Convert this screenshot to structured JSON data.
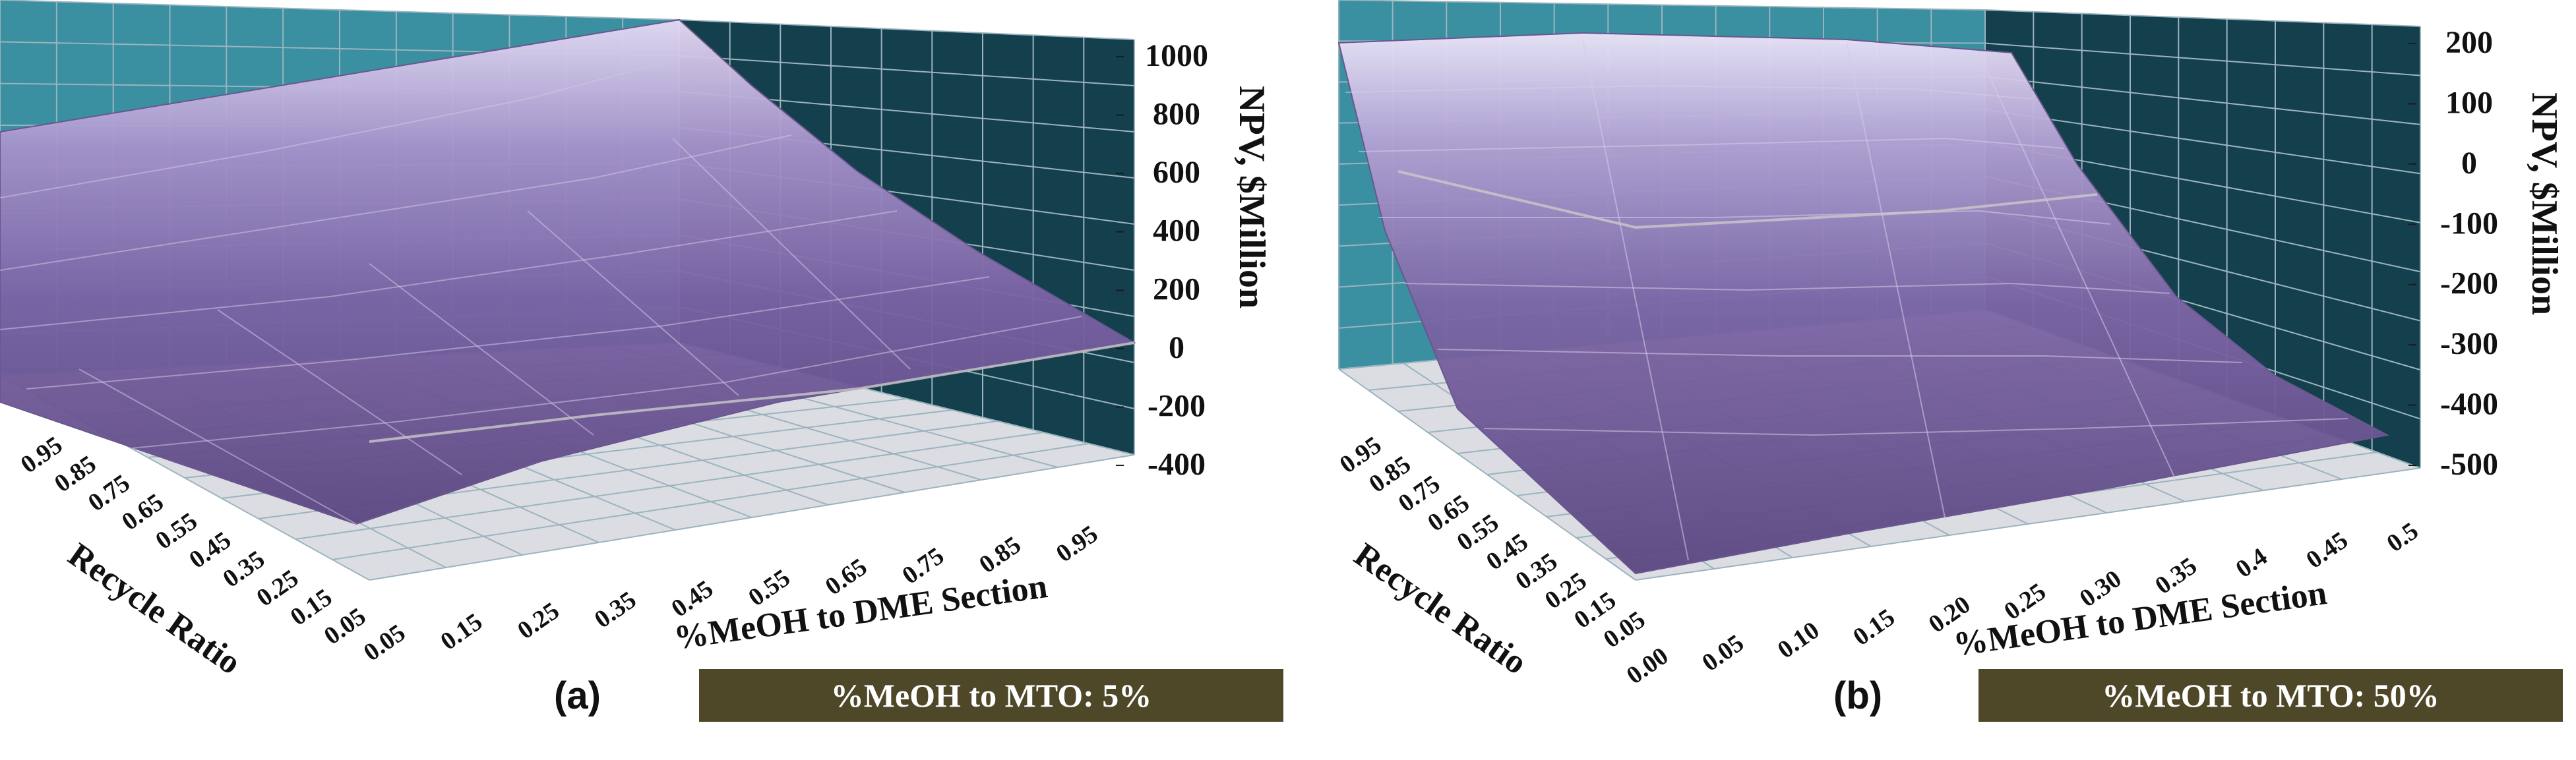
{
  "chart_data": [
    {
      "type": "surface",
      "panel_label": "(a)",
      "banner": "%MeOH to MTO: 5%",
      "xlabel": "%MeOH to DME Section",
      "ylabel": "Recycle Ratio",
      "zlabel": "NPV, $Million",
      "x_ticks": [
        "0.05",
        "0.15",
        "0.25",
        "0.35",
        "0.45",
        "0.55",
        "0.65",
        "0.75",
        "0.85",
        "0.95"
      ],
      "y_ticks": [
        "0.05",
        "0.15",
        "0.25",
        "0.35",
        "0.45",
        "0.55",
        "0.65",
        "0.75",
        "0.85",
        "0.95"
      ],
      "z_ticks": [
        "1000",
        "800",
        "600",
        "400",
        "200",
        "0",
        "-200",
        "-400"
      ],
      "zlim": [
        -400,
        1000
      ],
      "corner_values": {
        "x0.05_y0.05": -380,
        "x0.95_y0.05": 0,
        "x0.05_y0.95": 700,
        "x0.95_y0.95": 1000
      }
    },
    {
      "type": "surface",
      "panel_label": "(b)",
      "banner": "%MeOH to MTO: 50%",
      "xlabel": "%MeOH to DME Section",
      "ylabel": "Recycle Ratio",
      "zlabel": "NPV, $Million",
      "x_ticks": [
        "0.00",
        "0.05",
        "0.10",
        "0.15",
        "0.20",
        "0.25",
        "0.30",
        "0.35",
        "0.4",
        "0.45",
        "0.5"
      ],
      "y_ticks": [
        "0.05",
        "0.15",
        "0.25",
        "0.35",
        "0.45",
        "0.55",
        "0.65",
        "0.75",
        "0.85",
        "0.95"
      ],
      "z_ticks": [
        "200",
        "100",
        "0",
        "-100",
        "-200",
        "-300",
        "-400",
        "-500"
      ],
      "zlim": [
        -500,
        200
      ],
      "corner_values": {
        "x0.00_y0.05": -480,
        "x0.5_y0.05": -440,
        "x0.00_y0.95": 170,
        "x0.5_y0.95": 180
      }
    }
  ],
  "colors": {
    "wall_back": "#3a8fa0",
    "wall_side": "#143f4c",
    "floor": "#dcdde3",
    "surface_low": "#5e4a84",
    "surface_high": "#e2d6f2",
    "banner_bg": "#4e4829"
  }
}
